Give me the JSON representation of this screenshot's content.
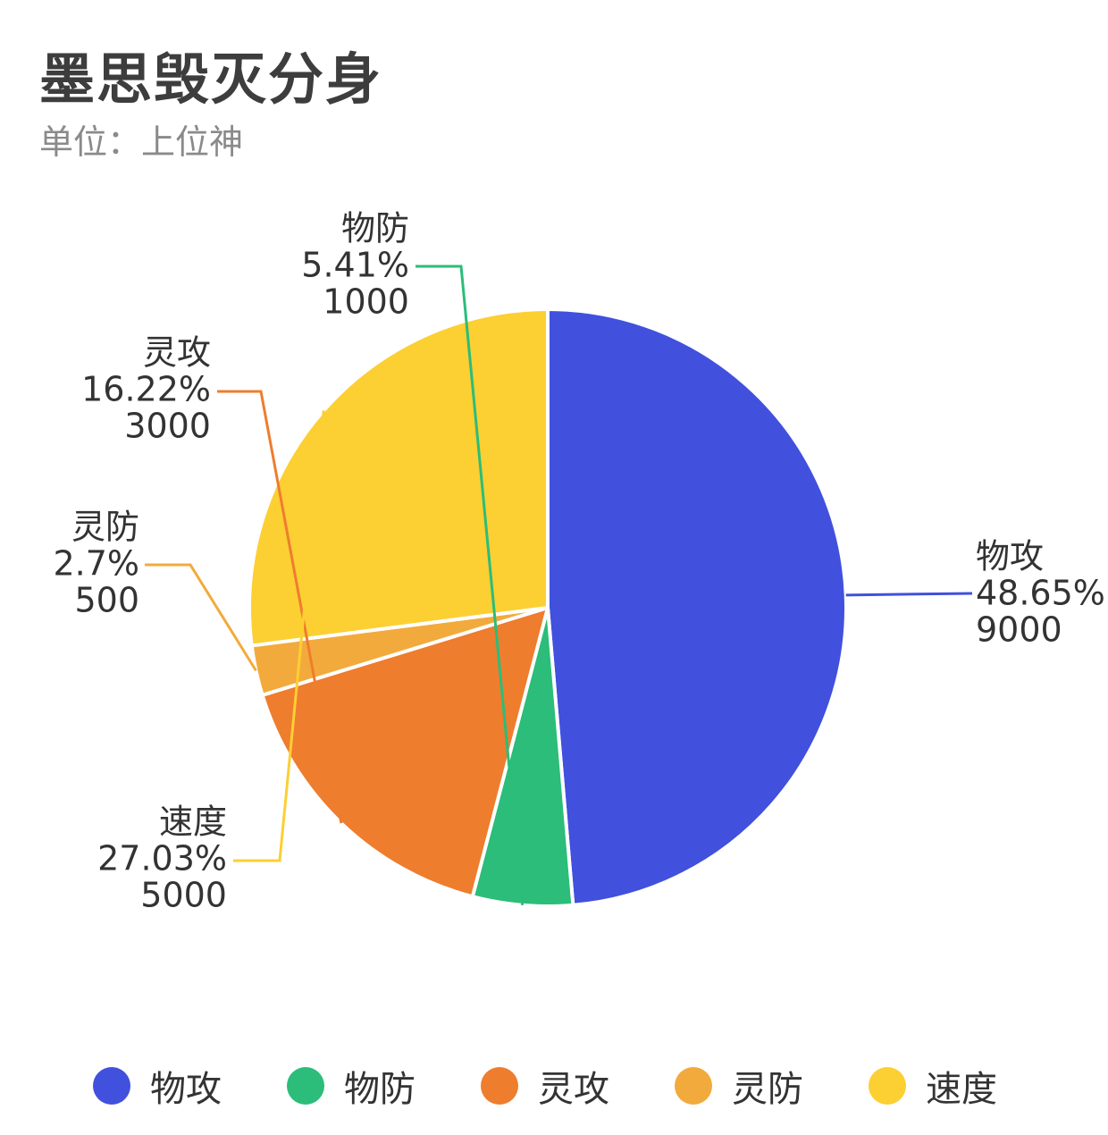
{
  "title": "墨思毁灭分身",
  "subtitle": "单位：上位神",
  "chart_data": {
    "type": "pie",
    "slices": [
      {
        "name": "物攻",
        "value": 9000,
        "percent": "48.65%",
        "color": "#4150dd"
      },
      {
        "name": "物防",
        "value": 1000,
        "percent": "5.41%",
        "color": "#2bbd79"
      },
      {
        "name": "灵攻",
        "value": 3000,
        "percent": "16.22%",
        "color": "#ee7d2e"
      },
      {
        "name": "灵防",
        "value": 500,
        "percent": "2.7%",
        "color": "#f3aa3c"
      },
      {
        "name": "速度",
        "value": 5000,
        "percent": "27.03%",
        "color": "#fccf33"
      }
    ],
    "legend_position": "bottom"
  }
}
